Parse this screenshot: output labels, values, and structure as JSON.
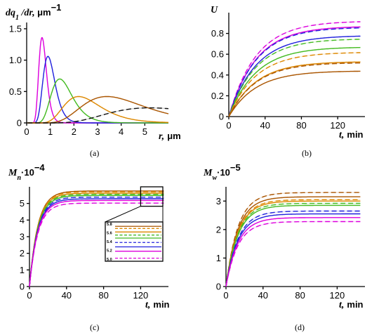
{
  "figure": {
    "panels": [
      {
        "id": "a",
        "label": "(a)"
      },
      {
        "id": "b",
        "label": "(b)"
      },
      {
        "id": "c",
        "label": "(c)"
      },
      {
        "id": "d",
        "label": "(d)"
      }
    ]
  },
  "series_styles": [
    {
      "color": "#dd00dd"
    },
    {
      "color": "#2222dd"
    },
    {
      "color": "#44bb22"
    },
    {
      "color": "#dd8800"
    },
    {
      "color": "#aa5500"
    },
    {
      "color": "#111111"
    }
  ],
  "chart_data": [
    {
      "id": "a",
      "type": "line",
      "ylabel_main": "dq",
      "ylabel_sub": "1",
      "ylabel_rest": " /dr, ",
      "ylabel_unit": "μm",
      "ylabel_unit_exp": "−1",
      "xlabel_var": "r,",
      "xlabel_unit": "μm",
      "xlim": [
        0,
        6
      ],
      "ylim": [
        0,
        1.6
      ],
      "xticks": [
        "0",
        "1",
        "2",
        "3",
        "4",
        "5"
      ],
      "xtick_values": [
        0,
        1,
        2,
        3,
        4,
        5
      ],
      "yticks": [
        "0",
        "0.5",
        "1.0",
        "1.5"
      ],
      "ytick_values": [
        0,
        0.5,
        1.0,
        1.5
      ],
      "series": [
        {
          "peak_x": 0.65,
          "peak_y": 1.36,
          "style": 0,
          "dashed": false
        },
        {
          "peak_x": 0.9,
          "peak_y": 1.06,
          "style": 1,
          "dashed": false
        },
        {
          "peak_x": 1.4,
          "peak_y": 0.7,
          "style": 2,
          "dashed": false
        },
        {
          "peak_x": 2.2,
          "peak_y": 0.42,
          "style": 3,
          "dashed": false
        },
        {
          "peak_x": 3.4,
          "peak_y": 0.42,
          "style": 4,
          "dashed": false
        },
        {
          "peak_x": 5.2,
          "peak_y": 0.24,
          "style": 5,
          "dashed": true
        }
      ]
    },
    {
      "id": "b",
      "type": "line",
      "ylabel_main": "U",
      "xlabel_var": "t,",
      "xlabel_unit": "min",
      "xlim": [
        0,
        150
      ],
      "ylim": [
        0,
        1.0
      ],
      "xticks": [
        "0",
        "40",
        "80",
        "120"
      ],
      "xtick_values": [
        0,
        40,
        80,
        120
      ],
      "yticks": [
        "0",
        "0.2",
        "0.4",
        "0.6",
        "0.8"
      ],
      "ytick_values": [
        0,
        0.2,
        0.4,
        0.6,
        0.8
      ],
      "series": [
        {
          "final": 0.92,
          "style": 0,
          "dashed": true
        },
        {
          "final": 0.87,
          "style": 0,
          "dashed": false
        },
        {
          "final": 0.86,
          "style": 1,
          "dashed": true
        },
        {
          "final": 0.78,
          "style": 1,
          "dashed": false
        },
        {
          "final": 0.75,
          "style": 2,
          "dashed": true
        },
        {
          "final": 0.67,
          "style": 2,
          "dashed": false
        },
        {
          "final": 0.62,
          "style": 3,
          "dashed": true
        },
        {
          "final": 0.53,
          "style": 3,
          "dashed": false
        },
        {
          "final": 0.52,
          "style": 4,
          "dashed": true
        },
        {
          "final": 0.44,
          "style": 4,
          "dashed": false
        }
      ]
    },
    {
      "id": "c",
      "type": "line",
      "ylabel_main": "M",
      "ylabel_sub": "n",
      "ylabel_rest": "·10",
      "ylabel_exp": "−4",
      "xlabel_var": "t,",
      "xlabel_unit": "min",
      "xlim": [
        0,
        150
      ],
      "ylim": [
        0,
        6
      ],
      "xticks": [
        "0",
        "40",
        "80",
        "120"
      ],
      "xtick_values": [
        0,
        40,
        80,
        120
      ],
      "yticks": [
        "0",
        "1",
        "2",
        "3",
        "4",
        "5"
      ],
      "ytick_values": [
        0,
        1,
        2,
        3,
        4,
        5
      ],
      "series": [
        {
          "final": 5.75,
          "style": 4,
          "dashed": false
        },
        {
          "final": 5.7,
          "style": 3,
          "dashed": true
        },
        {
          "final": 5.62,
          "style": 3,
          "dashed": false
        },
        {
          "final": 5.55,
          "style": 2,
          "dashed": true
        },
        {
          "final": 5.48,
          "style": 2,
          "dashed": false
        },
        {
          "final": 5.38,
          "style": 1,
          "dashed": true
        },
        {
          "final": 5.28,
          "style": 1,
          "dashed": false
        },
        {
          "final": 5.18,
          "style": 0,
          "dashed": false
        },
        {
          "final": 5.02,
          "style": 0,
          "dashed": true
        }
      ],
      "inset": {
        "yticks": [
          "5.8",
          "5.6",
          "5.4",
          "5.2",
          "5.0"
        ],
        "ytick_values": [
          5.8,
          5.6,
          5.4,
          5.2,
          5.0
        ],
        "ylim": [
          4.95,
          5.85
        ]
      }
    },
    {
      "id": "d",
      "type": "line",
      "ylabel_main": "M",
      "ylabel_sub": "w",
      "ylabel_rest": "·10",
      "ylabel_exp": "−5",
      "xlabel_var": "t,",
      "xlabel_unit": "min",
      "xlim": [
        0,
        150
      ],
      "ylim": [
        0,
        3.5
      ],
      "xticks": [
        "0",
        "40",
        "80",
        "120"
      ],
      "xtick_values": [
        0,
        40,
        80,
        120
      ],
      "yticks": [
        "0",
        "1",
        "2",
        "3"
      ],
      "ytick_values": [
        0,
        1,
        2,
        3
      ],
      "series": [
        {
          "final": 3.3,
          "style": 4,
          "dashed": true
        },
        {
          "final": 3.15,
          "style": 4,
          "dashed": false
        },
        {
          "final": 3.05,
          "style": 3,
          "dashed": true
        },
        {
          "final": 3.0,
          "style": 3,
          "dashed": false
        },
        {
          "final": 2.92,
          "style": 2,
          "dashed": true
        },
        {
          "final": 2.85,
          "style": 2,
          "dashed": false
        },
        {
          "final": 2.65,
          "style": 1,
          "dashed": true
        },
        {
          "final": 2.55,
          "style": 1,
          "dashed": false
        },
        {
          "final": 2.42,
          "style": 0,
          "dashed": false
        },
        {
          "final": 2.28,
          "style": 0,
          "dashed": true
        }
      ]
    }
  ]
}
